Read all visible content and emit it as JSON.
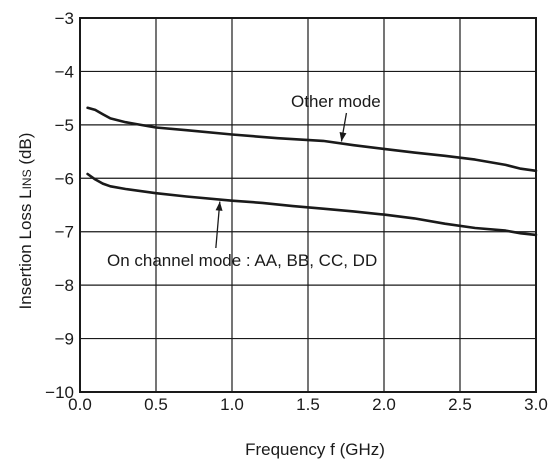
{
  "chart_data": {
    "type": "line",
    "title": "",
    "xlabel": "Frequency  f (GHz)",
    "ylabel_main": "Insertion Loss  L",
    "ylabel_sub": "INS",
    "ylabel_unit": " (dB)",
    "xlim": [
      0.0,
      3.0
    ],
    "ylim": [
      -10,
      -3
    ],
    "grid": true,
    "x_ticks": [
      "0.0",
      "0.5",
      "1.0",
      "1.5",
      "2.0",
      "2.5",
      "3.0"
    ],
    "y_ticks": [
      "−3",
      "−4",
      "−5",
      "−6",
      "−7",
      "−8",
      "−9",
      "−10"
    ],
    "series": [
      {
        "name": "Other mode",
        "x": [
          0.05,
          0.1,
          0.15,
          0.2,
          0.3,
          0.4,
          0.5,
          0.7,
          1.0,
          1.3,
          1.6,
          1.8,
          2.0,
          2.2,
          2.4,
          2.6,
          2.8,
          2.9,
          3.0
        ],
        "y": [
          -4.68,
          -4.72,
          -4.8,
          -4.88,
          -4.95,
          -5.0,
          -5.05,
          -5.1,
          -5.18,
          -5.25,
          -5.3,
          -5.38,
          -5.45,
          -5.52,
          -5.58,
          -5.65,
          -5.75,
          -5.82,
          -5.86
        ]
      },
      {
        "name": "On channel mode : AA, BB, CC, DD",
        "x": [
          0.05,
          0.1,
          0.15,
          0.2,
          0.3,
          0.5,
          0.7,
          1.0,
          1.2,
          1.4,
          1.6,
          1.8,
          2.0,
          2.2,
          2.4,
          2.6,
          2.8,
          2.9,
          3.0
        ],
        "y": [
          -5.92,
          -6.02,
          -6.1,
          -6.15,
          -6.2,
          -6.28,
          -6.34,
          -6.42,
          -6.46,
          -6.52,
          -6.57,
          -6.62,
          -6.68,
          -6.75,
          -6.85,
          -6.93,
          -6.98,
          -7.03,
          -7.06
        ]
      }
    ],
    "annotations": [
      {
        "text": "Other mode",
        "series": 0,
        "arrow_to_x": 1.72
      },
      {
        "text": "On channel mode : AA, BB, CC, DD",
        "series": 1,
        "arrow_to_x": 0.92
      }
    ]
  }
}
